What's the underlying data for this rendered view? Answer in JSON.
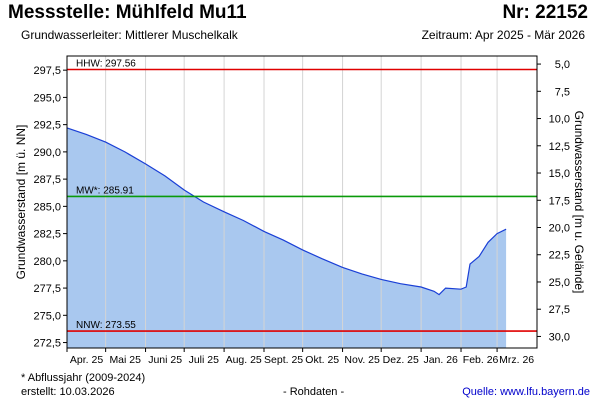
{
  "header": {
    "title": "Messstelle: Mühlfeld Mu11",
    "nr": "Nr: 22152",
    "aquifer": "Grundwasserleiter:   Mittlerer Muschelkalk",
    "period": "Zeitraum: Apr 2025 - Mär 2026"
  },
  "footer": {
    "note": "* Abflussjahr (2009-2024)",
    "created": "erstellt:  10.03.2026",
    "raw": "- Rohdaten -",
    "source": "Quelle: www.lfu.bayern.de"
  },
  "colors": {
    "area_fill": "#a9c8ef",
    "line": "#1a3fd6",
    "hhw_line": "#e00000",
    "mw_line": "#0a9a0a",
    "nnw_line": "#e00000",
    "grid": "#d4d4d4"
  },
  "chart_data": {
    "type": "area",
    "ylabel": "Grundwasserstand [m ü. NN]",
    "ylabel_right": "Grundwasserstand [m u. Gelände]",
    "ylim": [
      272.0,
      298.8
    ],
    "yticks": [
      272.5,
      275.0,
      277.5,
      280.0,
      282.5,
      285.0,
      287.5,
      290.0,
      292.5,
      295.0,
      297.5
    ],
    "ytick_labels": [
      "272,5",
      "275,0",
      "277,5",
      "280,0",
      "282,5",
      "285,0",
      "287,5",
      "290,0",
      "292,5",
      "295,0",
      "297,5"
    ],
    "right_axis_offset": 303.06,
    "yticks_right": [
      5.0,
      7.5,
      10.0,
      12.5,
      15.0,
      17.5,
      20.0,
      22.5,
      25.0,
      27.5,
      30.0
    ],
    "ytick_labels_right": [
      "5,0",
      "7,5",
      "10,0",
      "12,5",
      "15,0",
      "17,5",
      "20,0",
      "22,5",
      "25,0",
      "27,5",
      "30,0"
    ],
    "xlim": [
      "2025-04-01",
      "2026-04-01"
    ],
    "xticks": [
      "2025-04-01",
      "2025-05-01",
      "2025-06-01",
      "2025-07-01",
      "2025-08-01",
      "2025-09-01",
      "2025-10-01",
      "2025-11-01",
      "2025-12-01",
      "2026-01-01",
      "2026-02-01",
      "2026-03-01"
    ],
    "xtick_labels": [
      "Apr. 25",
      "Mai 25",
      "Juni 25",
      "Juli 25",
      "Aug. 25",
      "Sept. 25",
      "Okt. 25",
      "Nov. 25",
      "Dez. 25",
      "Jan. 26",
      "Feb. 26",
      "Mrz. 26"
    ],
    "grid": true,
    "series": [
      {
        "x": [
          "2025-04-01",
          "2025-04-16",
          "2025-05-01",
          "2025-05-16",
          "2025-06-01",
          "2025-06-16",
          "2025-07-01",
          "2025-07-16",
          "2025-08-01",
          "2025-08-16",
          "2025-09-01",
          "2025-09-16",
          "2025-10-01",
          "2025-10-16",
          "2025-11-01",
          "2025-11-16",
          "2025-12-01",
          "2025-12-16",
          "2026-01-01",
          "2026-01-11",
          "2026-01-15",
          "2026-01-20",
          "2026-02-01",
          "2026-02-05",
          "2026-02-08",
          "2026-02-15",
          "2026-02-22",
          "2026-03-01",
          "2026-03-08"
        ],
        "y": [
          292.2,
          291.6,
          290.9,
          290.0,
          288.9,
          287.8,
          286.5,
          285.4,
          284.5,
          283.7,
          282.7,
          281.9,
          281.0,
          280.2,
          279.4,
          278.8,
          278.3,
          277.9,
          277.6,
          277.2,
          276.9,
          277.5,
          277.4,
          277.6,
          279.7,
          280.4,
          281.7,
          282.5,
          282.9
        ]
      }
    ],
    "reference_lines": [
      {
        "label": "HHW: 297.56",
        "value": 297.56
      },
      {
        "label": "MW*: 285.91",
        "value": 285.91
      },
      {
        "label": "NNW: 273.55",
        "value": 273.55
      }
    ]
  }
}
